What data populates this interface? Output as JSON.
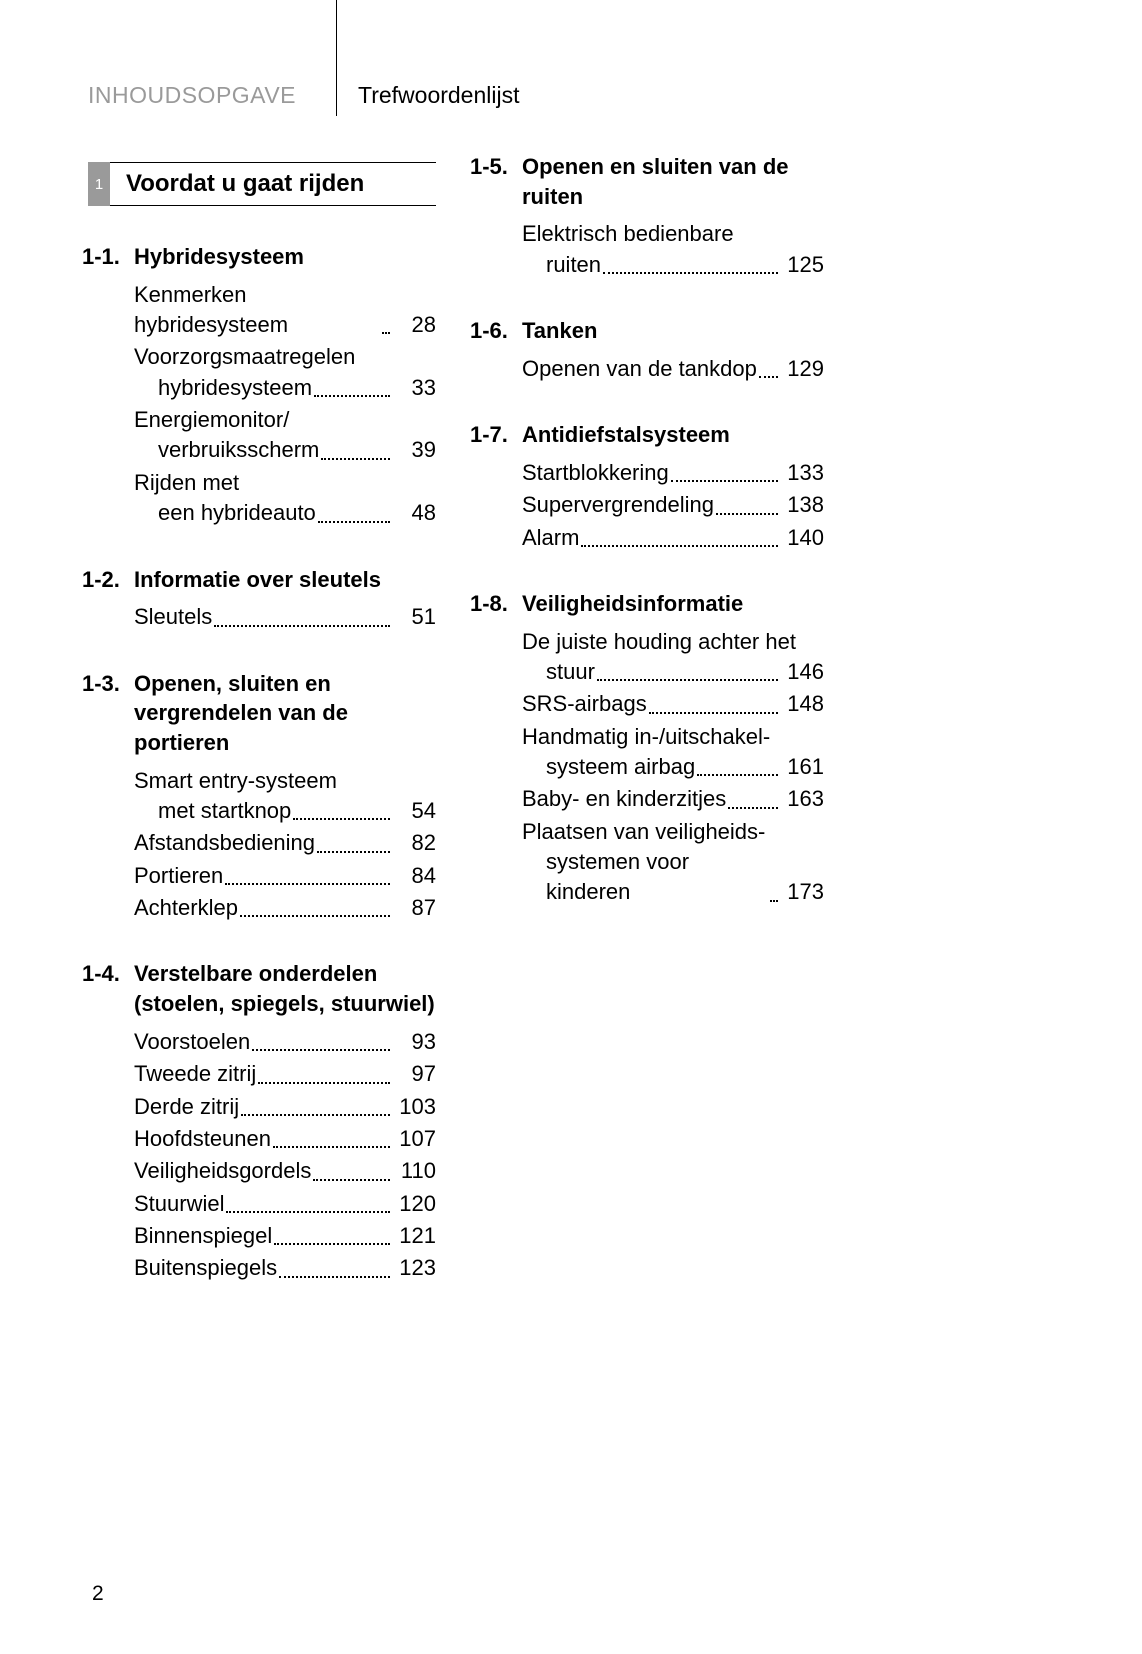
{
  "tabs": {
    "left": "INHOUDSOPGAVE",
    "right": "Trefwoordenlijst"
  },
  "chapter": {
    "num": "1",
    "title": "Voordat u gaat rijden"
  },
  "page_number": "2",
  "left_sections": [
    {
      "num": "1-1.",
      "title": "Hybridesysteem",
      "entries": [
        {
          "lines": [
            "Kenmerken hybridesysteem "
          ],
          "page": "28",
          "indent": false
        },
        {
          "lines": [
            "Voorzorgsmaatregelen",
            "hybridesysteem"
          ],
          "page": "33",
          "indent": true
        },
        {
          "lines": [
            "Energiemonitor/",
            "verbruiksscherm"
          ],
          "page": "39",
          "indent": true
        },
        {
          "lines": [
            "Rijden met",
            "een hybrideauto"
          ],
          "page": "48",
          "indent": true
        }
      ]
    },
    {
      "num": "1-2.",
      "title": "Informatie over sleutels",
      "entries": [
        {
          "lines": [
            "Sleutels"
          ],
          "page": "51",
          "indent": false
        }
      ]
    },
    {
      "num": "1-3.",
      "title": "Openen, sluiten en vergrendelen van de portieren",
      "entries": [
        {
          "lines": [
            "Smart entry-systeem",
            "met startknop"
          ],
          "page": "54",
          "indent": true
        },
        {
          "lines": [
            "Afstandsbediening"
          ],
          "page": "82",
          "indent": false
        },
        {
          "lines": [
            "Portieren"
          ],
          "page": "84",
          "indent": false
        },
        {
          "lines": [
            "Achterklep"
          ],
          "page": "87",
          "indent": false
        }
      ]
    },
    {
      "num": "1-4.",
      "title": "Verstelbare onderdelen (stoelen, spiegels, stuurwiel)",
      "entries": [
        {
          "lines": [
            "Voorstoelen"
          ],
          "page": "93",
          "indent": false
        },
        {
          "lines": [
            "Tweede zitrij"
          ],
          "page": "97",
          "indent": false
        },
        {
          "lines": [
            "Derde zitrij"
          ],
          "page": "103",
          "indent": false
        },
        {
          "lines": [
            "Hoofdsteunen"
          ],
          "page": "107",
          "indent": false
        },
        {
          "lines": [
            "Veiligheidsgordels"
          ],
          "page": "110",
          "indent": false
        },
        {
          "lines": [
            "Stuurwiel"
          ],
          "page": "120",
          "indent": false
        },
        {
          "lines": [
            "Binnenspiegel"
          ],
          "page": "121",
          "indent": false
        },
        {
          "lines": [
            "Buitenspiegels"
          ],
          "page": "123",
          "indent": false
        }
      ]
    }
  ],
  "right_sections": [
    {
      "num": "1-5.",
      "title": "Openen en sluiten van de ruiten",
      "entries": [
        {
          "lines": [
            "Elektrisch bedienbare",
            "ruiten"
          ],
          "page": "125",
          "indent": true
        }
      ]
    },
    {
      "num": "1-6.",
      "title": "Tanken",
      "entries": [
        {
          "lines": [
            "Openen van de tankdop"
          ],
          "page": "129",
          "indent": false
        }
      ]
    },
    {
      "num": "1-7.",
      "title": "Antidiefstalsysteem",
      "entries": [
        {
          "lines": [
            "Startblokkering"
          ],
          "page": "133",
          "indent": false
        },
        {
          "lines": [
            "Supervergrendeling"
          ],
          "page": "138",
          "indent": false
        },
        {
          "lines": [
            "Alarm"
          ],
          "page": "140",
          "indent": false
        }
      ]
    },
    {
      "num": "1-8.",
      "title": "Veiligheidsinformatie",
      "entries": [
        {
          "lines": [
            "De juiste houding achter het",
            "stuur"
          ],
          "page": "146",
          "indent": true
        },
        {
          "lines": [
            "SRS-airbags"
          ],
          "page": "148",
          "indent": false
        },
        {
          "lines": [
            "Handmatig in-/uitschakel-",
            "systeem airbag"
          ],
          "page": "161",
          "indent": true
        },
        {
          "lines": [
            "Baby- en kinderzitjes"
          ],
          "page": "163",
          "indent": false
        },
        {
          "lines": [
            "Plaatsen van veiligheids-",
            "systemen voor kinderen"
          ],
          "page": "173",
          "indent": true
        }
      ]
    }
  ]
}
